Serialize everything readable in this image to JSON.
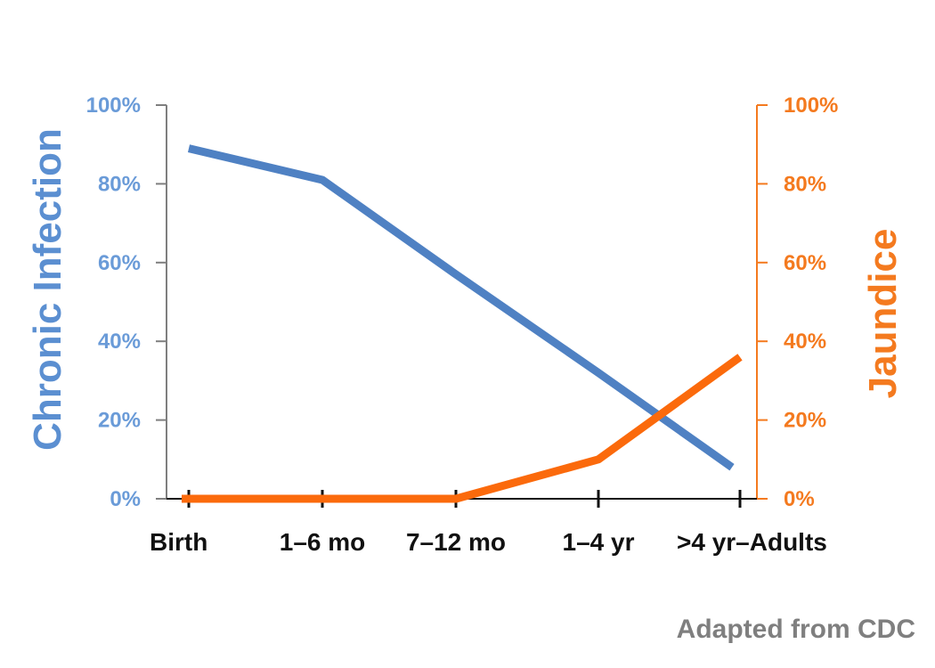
{
  "chart_data": {
    "type": "line",
    "categories": [
      "Birth",
      "1–6 mo",
      "7–12 mo",
      "1–4 yr",
      ">4 yr–Adults"
    ],
    "y_left_label": "Chronic Infection",
    "y_right_label": "Jaundice",
    "y_left_ticks": [
      "0%",
      "20%",
      "40%",
      "60%",
      "80%",
      "100%"
    ],
    "y_right_ticks": [
      "0%",
      "20%",
      "40%",
      "60%",
      "80%",
      "100%"
    ],
    "ylim_left": [
      0,
      100
    ],
    "ylim_right": [
      0,
      100
    ],
    "grid": false,
    "legend": "none",
    "series": [
      {
        "axis": "left",
        "color": "#4f81c3",
        "values": [
          89,
          81,
          57,
          32,
          8
        ]
      },
      {
        "axis": "right",
        "color": "#fb6a0c",
        "values": [
          0,
          0,
          0,
          10,
          36
        ]
      }
    ]
  },
  "source_note": "Adapted from CDC"
}
